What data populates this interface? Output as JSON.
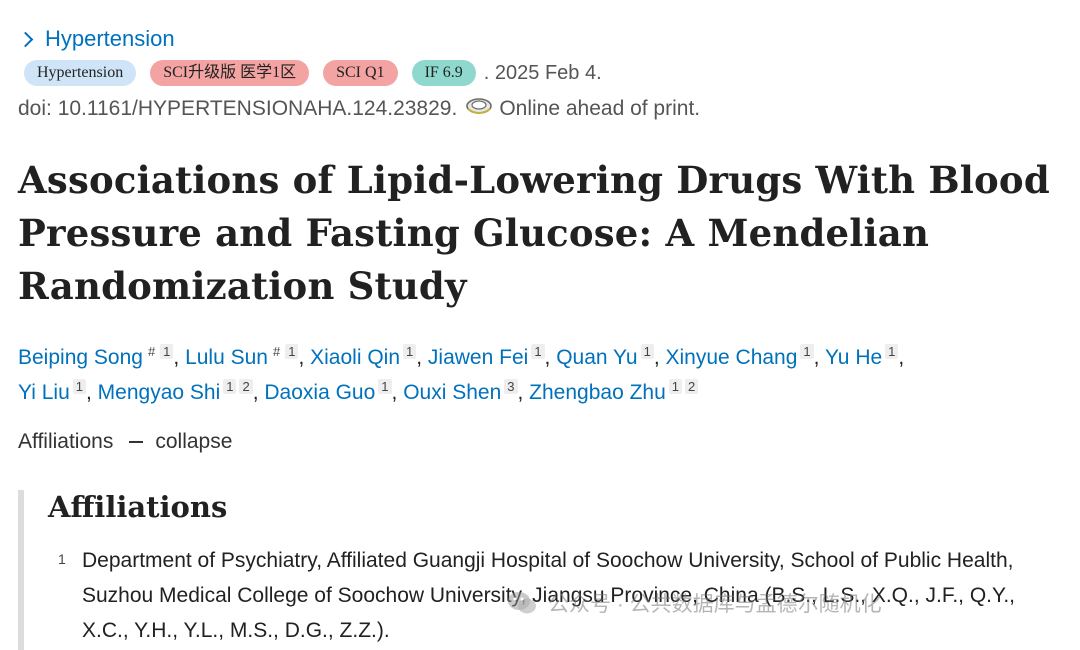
{
  "breadcrumb": {
    "journal_link": "Hypertension",
    "chevron_icon": "chevron-right-icon"
  },
  "badges": {
    "journal": "Hypertension",
    "sci_upgrade": "SCI升级版 医学1区",
    "sci_q": "SCI Q1",
    "impact_factor": "IF 6.9",
    "date": ". 2025 Feb 4."
  },
  "doi": {
    "text": "doi: 10.1161/HYPERTENSIONAHA.124.23829.",
    "icon": "online-ahead-icon",
    "status": "Online ahead of print."
  },
  "article": {
    "title": "Associations of Lipid-Lowering Drugs With Blood Pressure and Fasting Glucose: A Mendelian Randomization Study"
  },
  "authors": [
    {
      "name": "Beiping Song",
      "marks": [
        "#",
        "1"
      ]
    },
    {
      "name": "Lulu Sun",
      "marks": [
        "#",
        "1"
      ]
    },
    {
      "name": "Xiaoli Qin",
      "marks": [
        "1"
      ]
    },
    {
      "name": "Jiawen Fei",
      "marks": [
        "1"
      ]
    },
    {
      "name": "Quan Yu",
      "marks": [
        "1"
      ]
    },
    {
      "name": "Xinyue Chang",
      "marks": [
        "1"
      ]
    },
    {
      "name": "Yu He",
      "marks": [
        "1"
      ]
    },
    {
      "name": "Yi Liu",
      "marks": [
        "1"
      ]
    },
    {
      "name": "Mengyao Shi",
      "marks": [
        "1",
        "2"
      ]
    },
    {
      "name": "Daoxia Guo",
      "marks": [
        "1"
      ]
    },
    {
      "name": "Ouxi Shen",
      "marks": [
        "3"
      ]
    },
    {
      "name": "Zhengbao Zhu",
      "marks": [
        "1",
        "2"
      ]
    }
  ],
  "affiliations_toggle": {
    "label": "Affiliations",
    "action": "collapse"
  },
  "affiliations": {
    "heading": "Affiliations",
    "items": [
      {
        "num": "1",
        "text": "Department of Psychiatry, Affiliated Guangji Hospital of Soochow University, School of Public Health, Suzhou Medical College of Soochow University, Jiangsu Province, China (B.S., L.S., X.Q., J.F., Q.Y., X.C., Y.H., Y.L., M.S., D.G., Z.Z.)."
      }
    ]
  },
  "watermark": {
    "text": "公众号 · 公共数据库与孟德尔随机化",
    "icon": "wechat-icon"
  },
  "colors": {
    "link": "#0071bc",
    "badge_blue": "#cfe5f7",
    "badge_red": "#f4a3a3",
    "badge_teal": "#8fd8ce"
  }
}
